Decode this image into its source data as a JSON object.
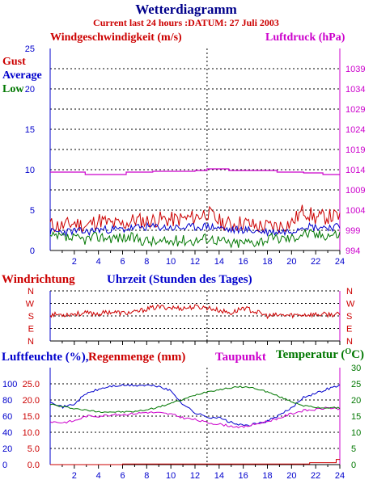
{
  "header": {
    "title": "Wetterdiagramm",
    "subtitle": "Current last 24 hours :DATUM: 27 Juli 2003"
  },
  "colors": {
    "title": "#00008b",
    "subtitle": "#cc0000",
    "red": "#cc0000",
    "blue": "#0000cc",
    "green": "#007700",
    "magenta": "#cc00cc",
    "grid": "#000000"
  },
  "x_axis": {
    "ticks": [
      "2",
      "4",
      "6",
      "8",
      "10",
      "12",
      "14",
      "16",
      "18",
      "20",
      "22",
      "24"
    ]
  },
  "wind_panel": {
    "label_left": "Windgeschwindigkeit (m/s)",
    "label_right": "Luftdruck (hPa)",
    "legend": [
      "Gust",
      "Average",
      "Low"
    ],
    "left_ticks": [
      "0",
      "5",
      "10",
      "15",
      "20",
      "25"
    ],
    "right_ticks": [
      "994",
      "999",
      "1004",
      "1009",
      "1014",
      "1019",
      "1024",
      "1029",
      "1034",
      "1039"
    ]
  },
  "direction_panel": {
    "label_left": "Windrichtung",
    "label_center": "Uhrzeit (Stunden des Tages)",
    "ticks": [
      "N",
      "E",
      "S",
      "W",
      "N"
    ]
  },
  "humidity_panel": {
    "label_humidity": "Luftfeuchte (%),",
    "label_rain": "Regenmenge (mm)",
    "label_dew": "Taupunkt",
    "label_temp": "Temperatur (",
    "label_temp_unit": "C)",
    "degree_symbol": "O",
    "humidity_ticks": [
      "0",
      "20",
      "40",
      "60",
      "80",
      "100"
    ],
    "rain_ticks": [
      "0.0",
      "5.0",
      "10.0",
      "15.0",
      "20.0",
      "25.0"
    ],
    "temp_ticks": [
      "0",
      "5",
      "10",
      "15",
      "20",
      "25",
      "30"
    ]
  },
  "chart_data": [
    {
      "type": "line",
      "title": "Windgeschwindigkeit (m/s)",
      "x_range": [
        0,
        24
      ],
      "ylim": [
        0,
        25
      ],
      "y2lim": [
        994,
        1044
      ],
      "series": [
        {
          "name": "Gust",
          "color": "#cc0000",
          "x": [
            0,
            1,
            2,
            3,
            4,
            5,
            6,
            7,
            8,
            9,
            10,
            11,
            12,
            13,
            14,
            15,
            16,
            17,
            18,
            19,
            20,
            21,
            22,
            23,
            24
          ],
          "values": [
            3.2,
            3.0,
            3.4,
            3.0,
            3.8,
            3.3,
            3.2,
            3.8,
            3.6,
            3.9,
            3.8,
            3.9,
            4.1,
            4.7,
            3.6,
            3.2,
            3.5,
            3.0,
            3.0,
            3.0,
            3.4,
            5.0,
            4.0,
            4.2,
            4.2
          ]
        },
        {
          "name": "Average",
          "color": "#0000cc",
          "x": [
            0,
            1,
            2,
            3,
            4,
            5,
            6,
            7,
            8,
            9,
            10,
            11,
            12,
            13,
            14,
            15,
            16,
            17,
            18,
            19,
            20,
            21,
            22,
            23,
            24
          ],
          "values": [
            2.3,
            2.3,
            2.4,
            2.3,
            2.6,
            2.6,
            2.6,
            2.8,
            2.9,
            2.9,
            2.8,
            2.8,
            2.9,
            3.0,
            2.8,
            2.5,
            2.6,
            2.4,
            2.3,
            2.3,
            2.4,
            3.1,
            2.9,
            2.9,
            2.9
          ]
        },
        {
          "name": "Low",
          "color": "#007700",
          "x": [
            0,
            1,
            2,
            3,
            4,
            5,
            6,
            7,
            8,
            9,
            10,
            11,
            12,
            13,
            14,
            15,
            16,
            17,
            18,
            19,
            20,
            21,
            22,
            23,
            24
          ],
          "values": [
            1.6,
            1.6,
            1.4,
            1.4,
            1.7,
            1.6,
            1.6,
            1.5,
            1.2,
            1.0,
            1.1,
            1.3,
            1.2,
            1.6,
            1.3,
            0.8,
            1.0,
            1.1,
            1.4,
            1.5,
            1.5,
            2.2,
            1.9,
            2.0,
            2.0
          ]
        },
        {
          "name": "Luftdruck (hPa)",
          "axis": "right",
          "color": "#cc00cc",
          "x": [
            0,
            2.9,
            2.9,
            6.3,
            6.3,
            8.5,
            8.5,
            12,
            12,
            13,
            13,
            14.8,
            14.8,
            18.8,
            18.8,
            21,
            21,
            22.6,
            22.6,
            24
          ],
          "values": [
            1013.4,
            1013.4,
            1012.8,
            1012.8,
            1013.4,
            1013.4,
            1013.6,
            1013.6,
            1013.8,
            1013.8,
            1014.2,
            1014.2,
            1013.8,
            1013.8,
            1013.4,
            1013.4,
            1013.2,
            1013.2,
            1012.8,
            1012.8
          ]
        }
      ]
    },
    {
      "type": "line",
      "title": "Windrichtung",
      "xlabel": "Uhrzeit (Stunden des Tages)",
      "x_range": [
        0,
        24
      ],
      "ylim": [
        0,
        360
      ],
      "y_ticks_deg": [
        0,
        90,
        180,
        270,
        360
      ],
      "series": [
        {
          "name": "Windrichtung",
          "color": "#cc0000",
          "x": [
            0,
            1,
            2,
            3,
            4,
            5,
            6,
            7,
            8,
            9,
            10,
            11,
            12,
            13,
            14,
            15,
            16,
            17,
            18,
            19,
            20,
            21,
            22,
            23,
            24
          ],
          "values": [
            190,
            190,
            195,
            200,
            195,
            210,
            200,
            205,
            230,
            245,
            240,
            235,
            245,
            240,
            220,
            200,
            240,
            210,
            180,
            185,
            185,
            190,
            190,
            190,
            190
          ]
        }
      ]
    },
    {
      "type": "line",
      "title": "Luftfeuchte / Regenmenge / Taupunkt / Temperatur",
      "x_range": [
        0,
        24
      ],
      "ylim": [
        0,
        120
      ],
      "y2lim": [
        0,
        30
      ],
      "series": [
        {
          "name": "Luftfeuchte (%)",
          "color": "#0000cc",
          "x": [
            0,
            1,
            2,
            3,
            4,
            5,
            6,
            7,
            8,
            9,
            10,
            11,
            12,
            13,
            14,
            15,
            16,
            17,
            18,
            19,
            20,
            21,
            22,
            23,
            24
          ],
          "values": [
            79,
            71,
            75,
            88,
            93,
            97,
            98,
            98,
            98,
            97,
            91,
            75,
            64,
            59,
            58,
            52,
            48,
            50,
            54,
            61,
            70,
            84,
            88,
            94,
            98
          ]
        },
        {
          "name": "Regenmenge (mm)",
          "color": "#cc0000",
          "x": [
            0,
            6,
            6,
            21.5,
            21.5,
            23.7,
            23.7,
            24
          ],
          "values": [
            0,
            0,
            0.2,
            0.2,
            0.6,
            0.6,
            1.6,
            1.6
          ]
        },
        {
          "name": "Taupunkt",
          "color": "#cc00cc",
          "x": [
            0,
            1,
            2,
            3,
            4,
            5,
            6,
            7,
            8,
            9,
            10,
            11,
            12,
            13,
            14,
            15,
            16,
            17,
            18,
            19,
            20,
            21,
            22,
            23,
            24
          ],
          "values": [
            13.3,
            13,
            13.5,
            15,
            15,
            15.4,
            15.5,
            15.8,
            16.2,
            16,
            15.6,
            14.5,
            13.9,
            13,
            12.5,
            11.9,
            11.6,
            12.5,
            13.4,
            14.4,
            15.8,
            16.7,
            17,
            17.6,
            17.3
          ]
        },
        {
          "name": "Temperatur (OC)",
          "color": "#007700",
          "x": [
            0,
            1,
            2,
            3,
            4,
            5,
            6,
            7,
            8,
            9,
            10,
            11,
            12,
            13,
            14,
            15,
            16,
            17,
            18,
            19,
            20,
            21,
            22,
            23,
            24
          ],
          "values": [
            18.7,
            17.9,
            17.4,
            16.8,
            16.4,
            16.3,
            16.3,
            16.4,
            17,
            17.8,
            19,
            20.1,
            21.5,
            22.6,
            23.2,
            23.8,
            24.1,
            23.6,
            22.5,
            21,
            19.5,
            18.3,
            17.6,
            17.6,
            17.5
          ]
        }
      ]
    }
  ]
}
